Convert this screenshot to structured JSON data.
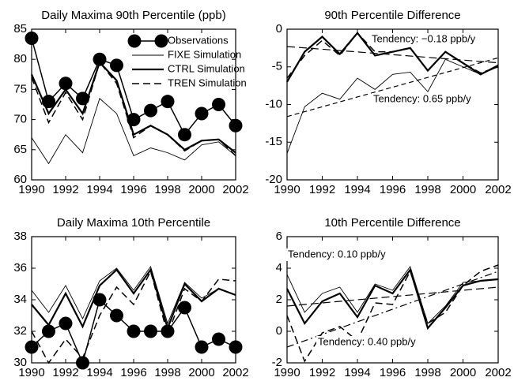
{
  "chart_data": [
    {
      "type": "line",
      "title": "Daily Maxima 90th Percentile (ppb)",
      "x": [
        1990,
        1991,
        1992,
        1993,
        1994,
        1995,
        1996,
        1997,
        1998,
        1999,
        2000,
        2001,
        2002
      ],
      "xlim": [
        1990,
        2002
      ],
      "xticks": [
        1990,
        1992,
        1994,
        1996,
        1998,
        2000,
        2002
      ],
      "ylim": [
        60,
        85
      ],
      "yticks": [
        60,
        65,
        70,
        75,
        80,
        85
      ],
      "legend": "upper right",
      "series": [
        {
          "name": "Observations",
          "color": "#000000",
          "values": [
            83.5,
            73,
            76,
            73.5,
            80,
            79,
            70,
            71.5,
            73,
            67.5,
            71,
            72.5,
            69
          ]
        },
        {
          "name": "FIXE Simulation",
          "color": "#000000",
          "values": [
            67,
            62.7,
            67.5,
            64.5,
            73.5,
            71,
            64,
            65.3,
            64.5,
            63.3,
            65.8,
            66.3,
            64
          ]
        },
        {
          "name": "CTRL Simulation",
          "color": "#000000",
          "values": [
            77.5,
            71,
            75,
            71,
            79.5,
            76.5,
            67.5,
            69,
            67.5,
            65,
            66.5,
            66.7,
            64.5
          ]
        },
        {
          "name": "TREN Simulation",
          "color": "#000000",
          "values": [
            77,
            69.5,
            74.5,
            70,
            79.5,
            76,
            67,
            69,
            67.5,
            64.8,
            66.5,
            66.7,
            64
          ]
        }
      ]
    },
    {
      "type": "line",
      "title": "90th Percentile Difference",
      "x": [
        1990,
        1991,
        1992,
        1993,
        1994,
        1995,
        1996,
        1997,
        1998,
        1999,
        2000,
        2001,
        2002
      ],
      "xlim": [
        1990,
        2002
      ],
      "xticks": [
        1990,
        1992,
        1994,
        1996,
        1998,
        2000,
        2002
      ],
      "ylim": [
        -20,
        0
      ],
      "yticks": [
        -20,
        -15,
        -10,
        -5,
        0
      ],
      "series": [
        {
          "color": "#000000",
          "values": [
            -16.5,
            -10.3,
            -8.5,
            -9.3,
            -6.5,
            -8,
            -6,
            -5.7,
            -8.3,
            -4,
            -5,
            -6,
            -5
          ]
        },
        {
          "color": "#000000",
          "values": [
            -7,
            -3,
            -1,
            -3.3,
            -0.5,
            -3.5,
            -3,
            -2.5,
            -5.5,
            -3,
            -4.5,
            -6,
            -4.8
          ]
        },
        {
          "color": "#000000",
          "values": [
            -6.5,
            -3.5,
            -1.5,
            -3.5,
            -0.5,
            -3,
            -3,
            -2.5,
            -5.5,
            -3,
            -4.5,
            -5.8,
            -5
          ]
        }
      ],
      "trend_lines": [
        {
          "x": [
            1990,
            2002
          ],
          "values": [
            -2.3,
            -4.46
          ],
          "dash": "long"
        },
        {
          "x": [
            1990,
            2002
          ],
          "values": [
            -11.6,
            -3.8
          ],
          "dash": "short"
        }
      ],
      "annotations": [
        "Tendency: −0.18 ppb/y",
        "Tendency: 0.65 ppb/y"
      ]
    },
    {
      "type": "line",
      "title": "Daily Maxima 10th Percentile",
      "x": [
        1990,
        1991,
        1992,
        1993,
        1994,
        1995,
        1996,
        1997,
        1998,
        1999,
        2000,
        2001,
        2002
      ],
      "xlim": [
        1990,
        2002
      ],
      "xticks": [
        1990,
        1992,
        1994,
        1996,
        1998,
        2000,
        2002
      ],
      "ylim": [
        30,
        38
      ],
      "yticks": [
        30,
        32,
        34,
        36,
        38
      ],
      "series": [
        {
          "color": "#000000",
          "values": [
            31,
            32,
            32.5,
            30,
            34,
            33,
            32,
            32,
            32,
            33.5,
            31,
            31.5,
            31
          ]
        },
        {
          "color": "#000000",
          "values": [
            34.6,
            33.2,
            34.9,
            32.8,
            35.2,
            36,
            34.6,
            36.1,
            32.5,
            35.1,
            34.1,
            34.7,
            34.3
          ]
        },
        {
          "color": "#000000",
          "values": [
            33.7,
            32.4,
            34.4,
            32.3,
            34.9,
            35.9,
            34.4,
            35.9,
            32.2,
            35,
            33.9,
            34.7,
            34.3
          ]
        },
        {
          "color": "#000000",
          "values": [
            32,
            30,
            31.5,
            30.3,
            33,
            34.8,
            33.7,
            35.8,
            31.8,
            34.7,
            33.9,
            35.3,
            35.2
          ]
        }
      ]
    },
    {
      "type": "line",
      "title": "10th Percentile Difference",
      "x": [
        1990,
        1991,
        1992,
        1993,
        1994,
        1995,
        1996,
        1997,
        1998,
        1999,
        2000,
        2001,
        2002
      ],
      "xlim": [
        1990,
        2002
      ],
      "xticks": [
        1990,
        1992,
        1994,
        1996,
        1998,
        2000,
        2002
      ],
      "ylim": [
        -2,
        6
      ],
      "yticks": [
        -2,
        0,
        2,
        4,
        6
      ],
      "series": [
        {
          "color": "#000000",
          "values": [
            3.6,
            1.2,
            2.4,
            2.8,
            1.2,
            3,
            2.6,
            4.1,
            0.5,
            1.6,
            3.1,
            3.2,
            3.3
          ]
        },
        {
          "color": "#000000",
          "values": [
            2.7,
            0.5,
            1.9,
            2.4,
            0.9,
            2.9,
            2.4,
            3.9,
            0.2,
            1.5,
            2.9,
            3.2,
            3.3
          ]
        },
        {
          "color": "#000000",
          "values": [
            1,
            -1.9,
            -0.1,
            0.3,
            -0.6,
            1.8,
            1.7,
            3.8,
            0.5,
            1.2,
            2.9,
            3.8,
            4.2
          ]
        }
      ],
      "trend_lines": [
        {
          "x": [
            1990,
            2002
          ],
          "values": [
            1.6,
            2.8
          ],
          "dash": "long"
        },
        {
          "x": [
            1990,
            2002
          ],
          "values": [
            -1,
            3.8
          ],
          "dash": "dashdot"
        }
      ],
      "annotations": [
        "Tendency: 0.10 ppb/y",
        "Tendency: 0.40 ppb/y"
      ]
    }
  ]
}
